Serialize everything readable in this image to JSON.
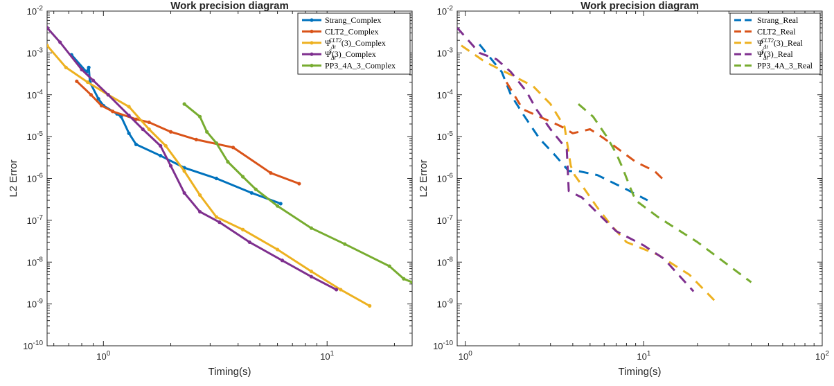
{
  "chart_data": [
    {
      "type": "line",
      "title": "Work precision diagram",
      "xlabel": "Timing(s)",
      "ylabel": "L2 Error",
      "xscale": "log",
      "yscale": "log",
      "xlim": [
        0.56,
        24
      ],
      "ylim": [
        1e-10,
        0.01
      ],
      "xticks": [
        {
          "v": 1,
          "base": "10",
          "exp": "0"
        },
        {
          "v": 10,
          "base": "10",
          "exp": "1"
        }
      ],
      "yticks": [
        {
          "v": 0.01,
          "base": "10",
          "exp": "-2"
        },
        {
          "v": 0.001,
          "base": "10",
          "exp": "-3"
        },
        {
          "v": 0.0001,
          "base": "10",
          "exp": "-4"
        },
        {
          "v": 1e-05,
          "base": "10",
          "exp": "-5"
        },
        {
          "v": 1e-06,
          "base": "10",
          "exp": "-6"
        },
        {
          "v": 1e-07,
          "base": "10",
          "exp": "-7"
        },
        {
          "v": 1e-08,
          "base": "10",
          "exp": "-8"
        },
        {
          "v": 1e-09,
          "base": "10",
          "exp": "-9"
        },
        {
          "v": 1e-10,
          "base": "10",
          "exp": "-10"
        }
      ],
      "grid": false,
      "legend": "top-right",
      "series": [
        {
          "name": "Strang_Complex",
          "legend_parts": [
            "Strang_Complex"
          ],
          "color": "#0072BD",
          "style": "solid",
          "markers": true,
          "points": [
            [
              0.72,
              0.0009
            ],
            [
              0.84,
              0.00035
            ],
            [
              0.86,
              0.00045
            ],
            [
              0.87,
              0.0002
            ],
            [
              0.95,
              8e-05
            ],
            [
              1.0,
              5.5e-05
            ],
            [
              1.15,
              3.5e-05
            ],
            [
              1.2,
              3e-05
            ],
            [
              1.3,
              1.2e-05
            ],
            [
              1.4,
              6.5e-06
            ],
            [
              1.8,
              3.5e-06
            ],
            [
              2.3,
              1.8e-06
            ],
            [
              3.2,
              1e-06
            ],
            [
              4.6,
              4.5e-07
            ],
            [
              6.2,
              2.5e-07
            ]
          ]
        },
        {
          "name": "CLT2_Complex",
          "legend_parts": [
            "CLT2_Complex"
          ],
          "color": "#D95319",
          "style": "solid",
          "markers": true,
          "points": [
            [
              0.76,
              0.00021
            ],
            [
              0.88,
              0.0001
            ],
            [
              0.98,
              5.5e-05
            ],
            [
              1.1,
              4e-05
            ],
            [
              1.4,
              2.6e-05
            ],
            [
              1.6,
              2.2e-05
            ],
            [
              2.0,
              1.3e-05
            ],
            [
              2.6,
              8.5e-06
            ],
            [
              3.8,
              5.5e-06
            ],
            [
              5.6,
              1.35e-06
            ],
            [
              7.5,
              7.5e-07
            ]
          ]
        },
        {
          "name": "Ψ(CLT2)(3)_Complex",
          "legend_parts": [
            "Ψ",
            "Δt",
            "CLT2",
            "(3)_Complex"
          ],
          "color": "#EDB120",
          "style": "solid",
          "markers": true,
          "points": [
            [
              0.56,
              0.0015
            ],
            [
              0.68,
              0.00045
            ],
            [
              0.85,
              0.0002
            ],
            [
              1.05,
              0.0001
            ],
            [
              1.3,
              5.2e-05
            ],
            [
              1.6,
              1.5e-05
            ],
            [
              1.9,
              6e-06
            ],
            [
              2.3,
              1.5e-06
            ],
            [
              2.7,
              4e-07
            ],
            [
              3.2,
              1.2e-07
            ],
            [
              4.2,
              6e-08
            ],
            [
              6.0,
              2e-08
            ],
            [
              8.5,
              6e-09
            ],
            [
              11.5,
              2.2e-09
            ],
            [
              15.5,
              9e-10
            ]
          ]
        },
        {
          "name": "Ψ(S)(3)_Complex",
          "legend_parts": [
            "Ψ",
            "Δt",
            "S",
            "(3)_Complex"
          ],
          "color": "#7E2F8E",
          "style": "solid",
          "markers": true,
          "points": [
            [
              0.56,
              0.004
            ],
            [
              0.64,
              0.0018
            ],
            [
              0.8,
              0.0004
            ],
            [
              0.9,
              0.00022
            ],
            [
              1.05,
              0.0001
            ],
            [
              1.3,
              3.2e-05
            ],
            [
              1.5,
              1.5e-05
            ],
            [
              1.8,
              6e-06
            ],
            [
              2.0,
              2e-06
            ],
            [
              2.3,
              4.5e-07
            ],
            [
              2.7,
              1.6e-07
            ],
            [
              3.3,
              9e-08
            ],
            [
              4.5,
              3e-08
            ],
            [
              6.3,
              1.1e-08
            ],
            [
              8.5,
              4.5e-09
            ],
            [
              11.0,
              2.2e-09
            ]
          ]
        },
        {
          "name": "PP3_4A_3_Complex",
          "legend_parts": [
            "PP3_4A_3_Complex"
          ],
          "color": "#77AC30",
          "style": "solid",
          "markers": true,
          "points": [
            [
              2.3,
              6e-05
            ],
            [
              2.7,
              3e-05
            ],
            [
              2.9,
              1.3e-05
            ],
            [
              3.2,
              7e-06
            ],
            [
              3.6,
              2.5e-06
            ],
            [
              4.2,
              1.1e-06
            ],
            [
              4.8,
              5.5e-07
            ],
            [
              6.0,
              2.2e-07
            ],
            [
              8.5,
              6.5e-08
            ],
            [
              12.0,
              2.7e-08
            ],
            [
              19.0,
              8e-09
            ],
            [
              22.0,
              4e-09
            ],
            [
              24.0,
              3.3e-09
            ]
          ]
        }
      ]
    },
    {
      "type": "line",
      "title": "Work precision diagram",
      "xlabel": "Timing(s)",
      "ylabel": "L2 Error",
      "xscale": "log",
      "yscale": "log",
      "xlim": [
        0.9,
        100
      ],
      "ylim": [
        1e-10,
        0.01
      ],
      "xticks": [
        {
          "v": 1,
          "base": "10",
          "exp": "0"
        },
        {
          "v": 10,
          "base": "10",
          "exp": "1"
        },
        {
          "v": 100,
          "base": "10",
          "exp": "2"
        }
      ],
      "yticks": [
        {
          "v": 0.01,
          "base": "10",
          "exp": "-2"
        },
        {
          "v": 0.001,
          "base": "10",
          "exp": "-3"
        },
        {
          "v": 0.0001,
          "base": "10",
          "exp": "-4"
        },
        {
          "v": 1e-05,
          "base": "10",
          "exp": "-5"
        },
        {
          "v": 1e-06,
          "base": "10",
          "exp": "-6"
        },
        {
          "v": 1e-07,
          "base": "10",
          "exp": "-7"
        },
        {
          "v": 1e-08,
          "base": "10",
          "exp": "-8"
        },
        {
          "v": 1e-09,
          "base": "10",
          "exp": "-9"
        },
        {
          "v": 1e-10,
          "base": "10",
          "exp": "-10"
        }
      ],
      "grid": false,
      "legend": "top-right",
      "series": [
        {
          "name": "Strang_Real",
          "legend_parts": [
            "Strang_Real"
          ],
          "color": "#0072BD",
          "style": "dashed",
          "markers": false,
          "points": [
            [
              1.2,
              0.0016
            ],
            [
              1.6,
              0.00035
            ],
            [
              1.8,
              0.0001
            ],
            [
              2.1,
              3.5e-05
            ],
            [
              2.6,
              9e-06
            ],
            [
              3.2,
              3.5e-06
            ],
            [
              3.8,
              1.5e-06
            ],
            [
              4.3,
              1.5e-06
            ],
            [
              5.5,
              1.2e-06
            ],
            [
              8.0,
              5.5e-07
            ],
            [
              10.5,
              3e-07
            ]
          ]
        },
        {
          "name": "CLT2_Real",
          "legend_parts": [
            "CLT2_Real"
          ],
          "color": "#D95319",
          "style": "dashed",
          "markers": false,
          "points": [
            [
              1.7,
              0.0002
            ],
            [
              2.1,
              4.5e-05
            ],
            [
              2.6,
              3e-05
            ],
            [
              3.4,
              1.8e-05
            ],
            [
              4.0,
              1.2e-05
            ],
            [
              5.0,
              1.5e-05
            ],
            [
              6.0,
              9e-06
            ],
            [
              9.0,
              2.5e-06
            ],
            [
              11.5,
              1.5e-06
            ],
            [
              13.0,
              9e-07
            ]
          ]
        },
        {
          "name": "Ψ(CLT2)(3)_Real",
          "legend_parts": [
            "Ψ",
            "Δt",
            "CLT2",
            "(3)_Real"
          ],
          "color": "#EDB120",
          "style": "dashed",
          "markers": false,
          "points": [
            [
              0.95,
              0.0015
            ],
            [
              1.3,
              0.0006
            ],
            [
              1.8,
              0.0003
            ],
            [
              2.4,
              0.00016
            ],
            [
              3.0,
              6e-05
            ],
            [
              3.6,
              1.7e-05
            ],
            [
              3.9,
              2e-06
            ],
            [
              4.1,
              1.2e-06
            ],
            [
              4.6,
              6e-07
            ],
            [
              5.5,
              2e-07
            ],
            [
              6.5,
              8e-08
            ],
            [
              8.0,
              3e-08
            ],
            [
              12.0,
              1.5e-08
            ],
            [
              18.0,
              5e-09
            ],
            [
              26.0,
              1e-09
            ]
          ]
        },
        {
          "name": "Ψ(S)(3)_Real",
          "legend_parts": [
            "Ψ",
            "Δt",
            "S",
            "(3)_Real"
          ],
          "color": "#7E2F8E",
          "style": "dashed",
          "markers": false,
          "points": [
            [
              0.9,
              0.004
            ],
            [
              1.2,
              0.001
            ],
            [
              1.5,
              0.0007
            ],
            [
              1.8,
              0.00035
            ],
            [
              2.2,
              0.00012
            ],
            [
              2.5,
              4.5e-05
            ],
            [
              3.0,
              1.5e-05
            ],
            [
              3.7,
              5e-06
            ],
            [
              3.8,
              5e-07
            ],
            [
              4.5,
              3.5e-07
            ],
            [
              5.5,
              1.5e-07
            ],
            [
              7.0,
              5.5e-08
            ],
            [
              10.0,
              2.5e-08
            ],
            [
              13.0,
              1.2e-08
            ],
            [
              19.0,
              2e-09
            ]
          ]
        },
        {
          "name": "PP3_4A_3_Real",
          "legend_parts": [
            "PP3_4A_3_Real"
          ],
          "color": "#77AC30",
          "style": "dashed",
          "markers": false,
          "points": [
            [
              4.3,
              6e-05
            ],
            [
              5.2,
              3e-05
            ],
            [
              6.2,
              1e-05
            ],
            [
              7.0,
              4e-06
            ],
            [
              7.6,
              1.8e-06
            ],
            [
              8.4,
              6e-07
            ],
            [
              9.0,
              3e-07
            ],
            [
              12.0,
              1.2e-07
            ],
            [
              20.0,
              3e-08
            ],
            [
              40.0,
              3.3e-09
            ]
          ]
        }
      ]
    }
  ]
}
